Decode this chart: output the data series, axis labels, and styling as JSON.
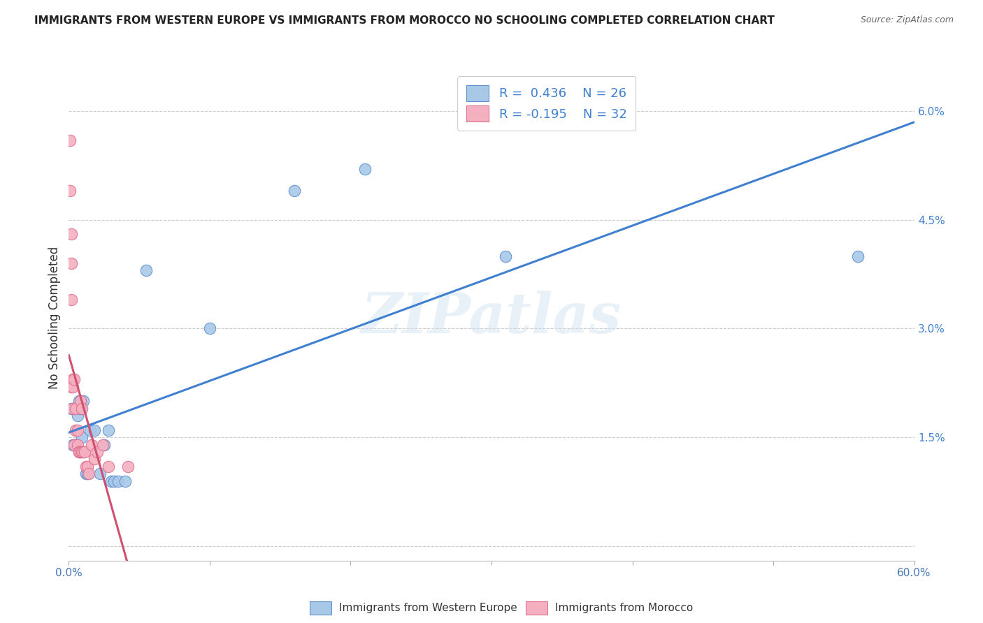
{
  "title": "IMMIGRANTS FROM WESTERN EUROPE VS IMMIGRANTS FROM MOROCCO NO SCHOOLING COMPLETED CORRELATION CHART",
  "source": "Source: ZipAtlas.com",
  "ylabel": "No Schooling Completed",
  "xlim": [
    0,
    0.6
  ],
  "ylim": [
    -0.002,
    0.065
  ],
  "xticks": [
    0.0,
    0.1,
    0.2,
    0.3,
    0.4,
    0.5,
    0.6
  ],
  "xticklabels": [
    "0.0%",
    "",
    "",
    "",
    "",
    "",
    "60.0%"
  ],
  "yticks_right": [
    0.0,
    0.015,
    0.03,
    0.045,
    0.06
  ],
  "yticklabels_right": [
    "",
    "1.5%",
    "3.0%",
    "4.5%",
    "6.0%"
  ],
  "blue_R": 0.436,
  "blue_N": 26,
  "pink_R": -0.195,
  "pink_N": 32,
  "blue_color": "#a8c8e8",
  "pink_color": "#f5b0c0",
  "blue_edge_color": "#6090d0",
  "pink_edge_color": "#e07090",
  "blue_line_color": "#4080d0",
  "pink_line_color": "#d05070",
  "blue_label": "Immigrants from Western Europe",
  "pink_label": "Immigrants from Morocco",
  "watermark": "ZIPatlas",
  "blue_x": [
    0.002,
    0.003,
    0.004,
    0.005,
    0.006,
    0.007,
    0.008,
    0.009,
    0.01,
    0.012,
    0.013,
    0.015,
    0.018,
    0.022,
    0.025,
    0.028,
    0.03,
    0.032,
    0.035,
    0.04,
    0.055,
    0.1,
    0.16,
    0.21,
    0.31,
    0.56
  ],
  "blue_y": [
    0.019,
    0.014,
    0.014,
    0.014,
    0.018,
    0.02,
    0.019,
    0.015,
    0.02,
    0.01,
    0.01,
    0.016,
    0.016,
    0.01,
    0.014,
    0.016,
    0.009,
    0.009,
    0.009,
    0.009,
    0.038,
    0.03,
    0.049,
    0.052,
    0.04,
    0.04
  ],
  "pink_x": [
    0.001,
    0.001,
    0.002,
    0.002,
    0.002,
    0.002,
    0.003,
    0.003,
    0.003,
    0.004,
    0.004,
    0.005,
    0.005,
    0.006,
    0.006,
    0.007,
    0.007,
    0.008,
    0.008,
    0.009,
    0.009,
    0.01,
    0.011,
    0.012,
    0.013,
    0.014,
    0.016,
    0.018,
    0.02,
    0.024,
    0.028,
    0.042
  ],
  "pink_y": [
    0.056,
    0.049,
    0.043,
    0.039,
    0.034,
    0.022,
    0.023,
    0.019,
    0.022,
    0.014,
    0.023,
    0.019,
    0.016,
    0.014,
    0.016,
    0.013,
    0.013,
    0.013,
    0.02,
    0.019,
    0.013,
    0.013,
    0.013,
    0.011,
    0.011,
    0.01,
    0.014,
    0.012,
    0.013,
    0.014,
    0.011,
    0.011
  ]
}
